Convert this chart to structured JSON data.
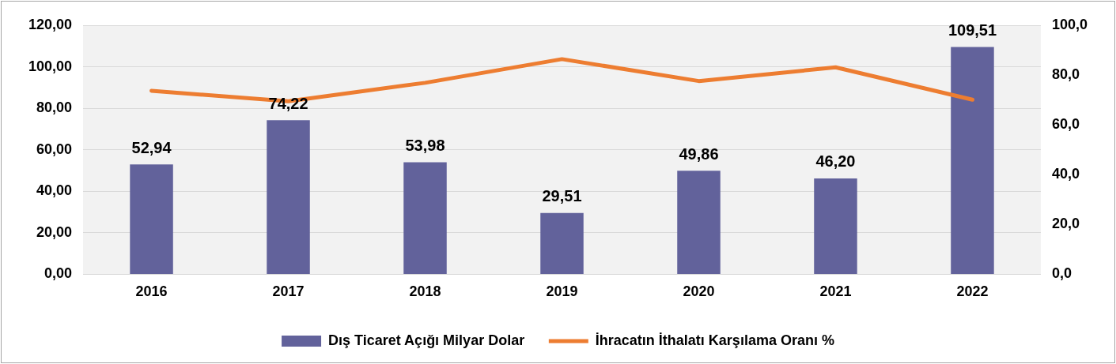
{
  "chart_data": {
    "type": "bar",
    "categories": [
      "2016",
      "2017",
      "2018",
      "2019",
      "2020",
      "2021",
      "2022"
    ],
    "series": [
      {
        "name": "Dış Ticaret Açığı Milyar Dolar",
        "color": "#62629b",
        "values": [
          52.94,
          74.22,
          53.98,
          29.51,
          49.86,
          46.2,
          109.51
        ],
        "value_labels": [
          "52,94",
          "74,22",
          "53,98",
          "29,51",
          "49,86",
          "46,20",
          "109,51"
        ]
      },
      {
        "name": "İhracatın İthalatı Karşılama Oranı %",
        "type": "line",
        "axis": "y2",
        "color": "#ed7d31",
        "values": [
          73.7,
          69.5,
          76.9,
          86.4,
          77.6,
          83.1,
          70.1
        ]
      }
    ],
    "ylim": [
      0,
      120
    ],
    "yticks": [
      {
        "value": 0,
        "label": "0,00"
      },
      {
        "value": 20,
        "label": "20,00"
      },
      {
        "value": 40,
        "label": "40,00"
      },
      {
        "value": 60,
        "label": "60,00"
      },
      {
        "value": 80,
        "label": "80,00"
      },
      {
        "value": 100,
        "label": "100,00"
      },
      {
        "value": 120,
        "label": "120,00"
      }
    ],
    "y2lim": [
      0,
      100
    ],
    "y2ticks": [
      {
        "value": 0,
        "label": "0,0"
      },
      {
        "value": 20,
        "label": "20,0"
      },
      {
        "value": 40,
        "label": "40,0"
      },
      {
        "value": 60,
        "label": "60,0"
      },
      {
        "value": 80,
        "label": "80,0"
      },
      {
        "value": 100,
        "label": "100,0"
      }
    ],
    "grid": "y",
    "legend": "bottom",
    "marker": "none",
    "line_style": "solid"
  }
}
